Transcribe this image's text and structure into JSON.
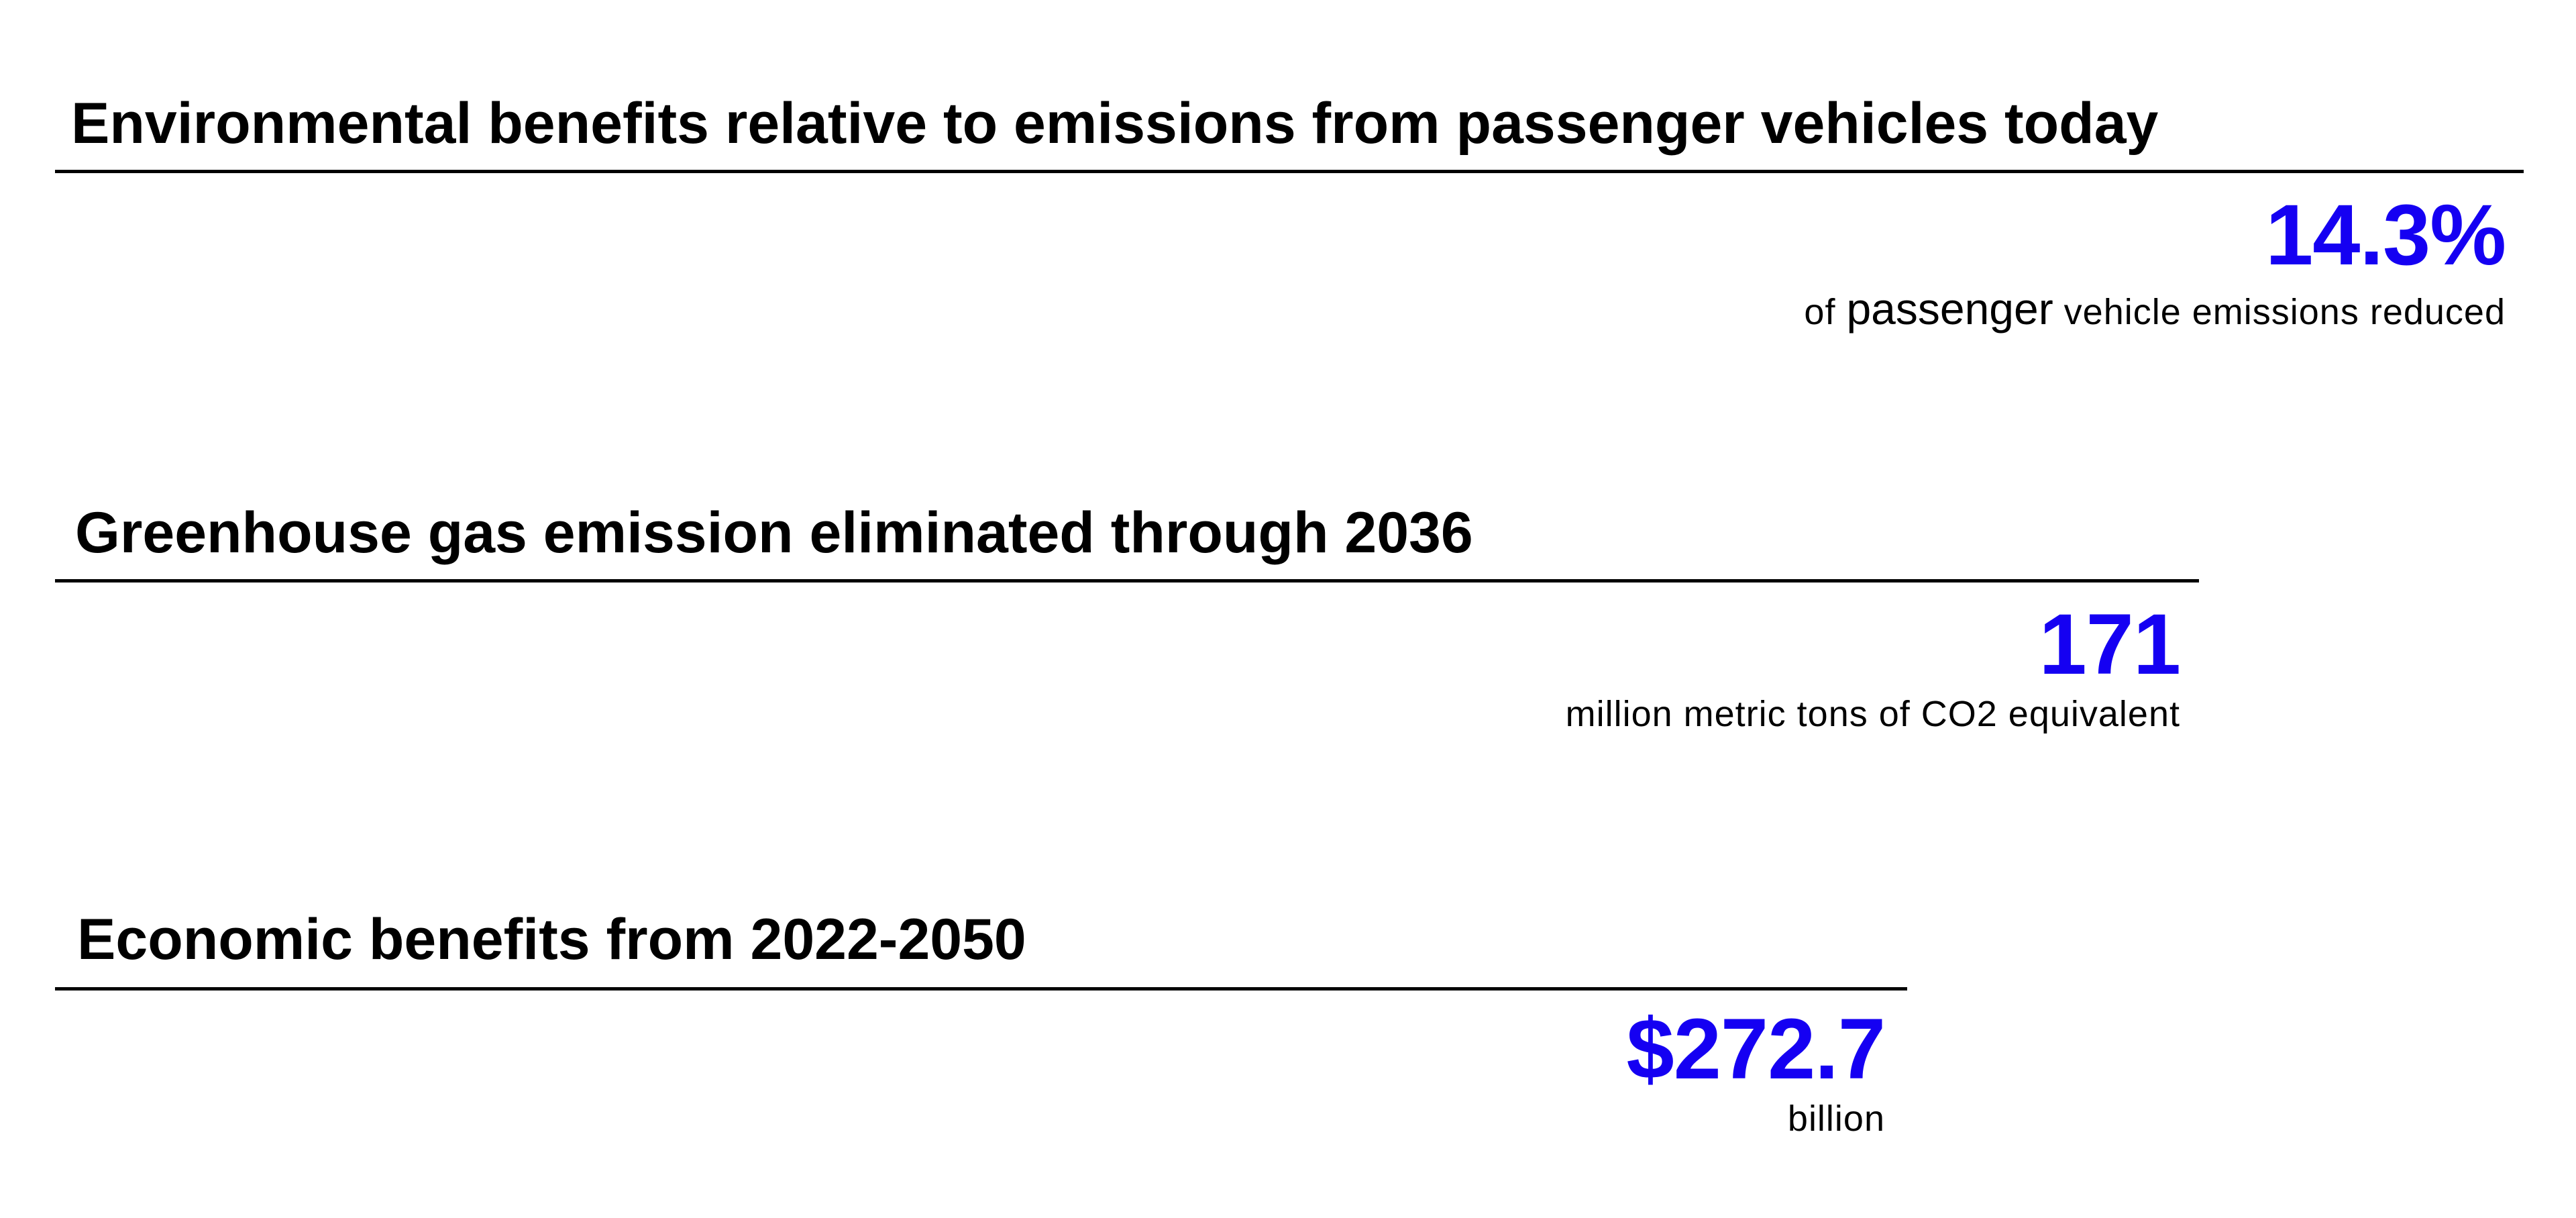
{
  "accent_color": "#1500F2",
  "sections": [
    {
      "heading": "Environmental benefits relative to emissions from passenger vehicles today",
      "value": "14.3%",
      "caption_prefix": "of ",
      "caption_emphasis": "passenger",
      "caption_suffix": " vehicle emissions reduced"
    },
    {
      "heading": "Greenhouse gas emission eliminated through 2036",
      "value": "171",
      "caption": "million metric tons of CO2 equivalent"
    },
    {
      "heading": "Economic benefits from 2022-2050",
      "value": "$272.7",
      "caption": "billion"
    }
  ]
}
